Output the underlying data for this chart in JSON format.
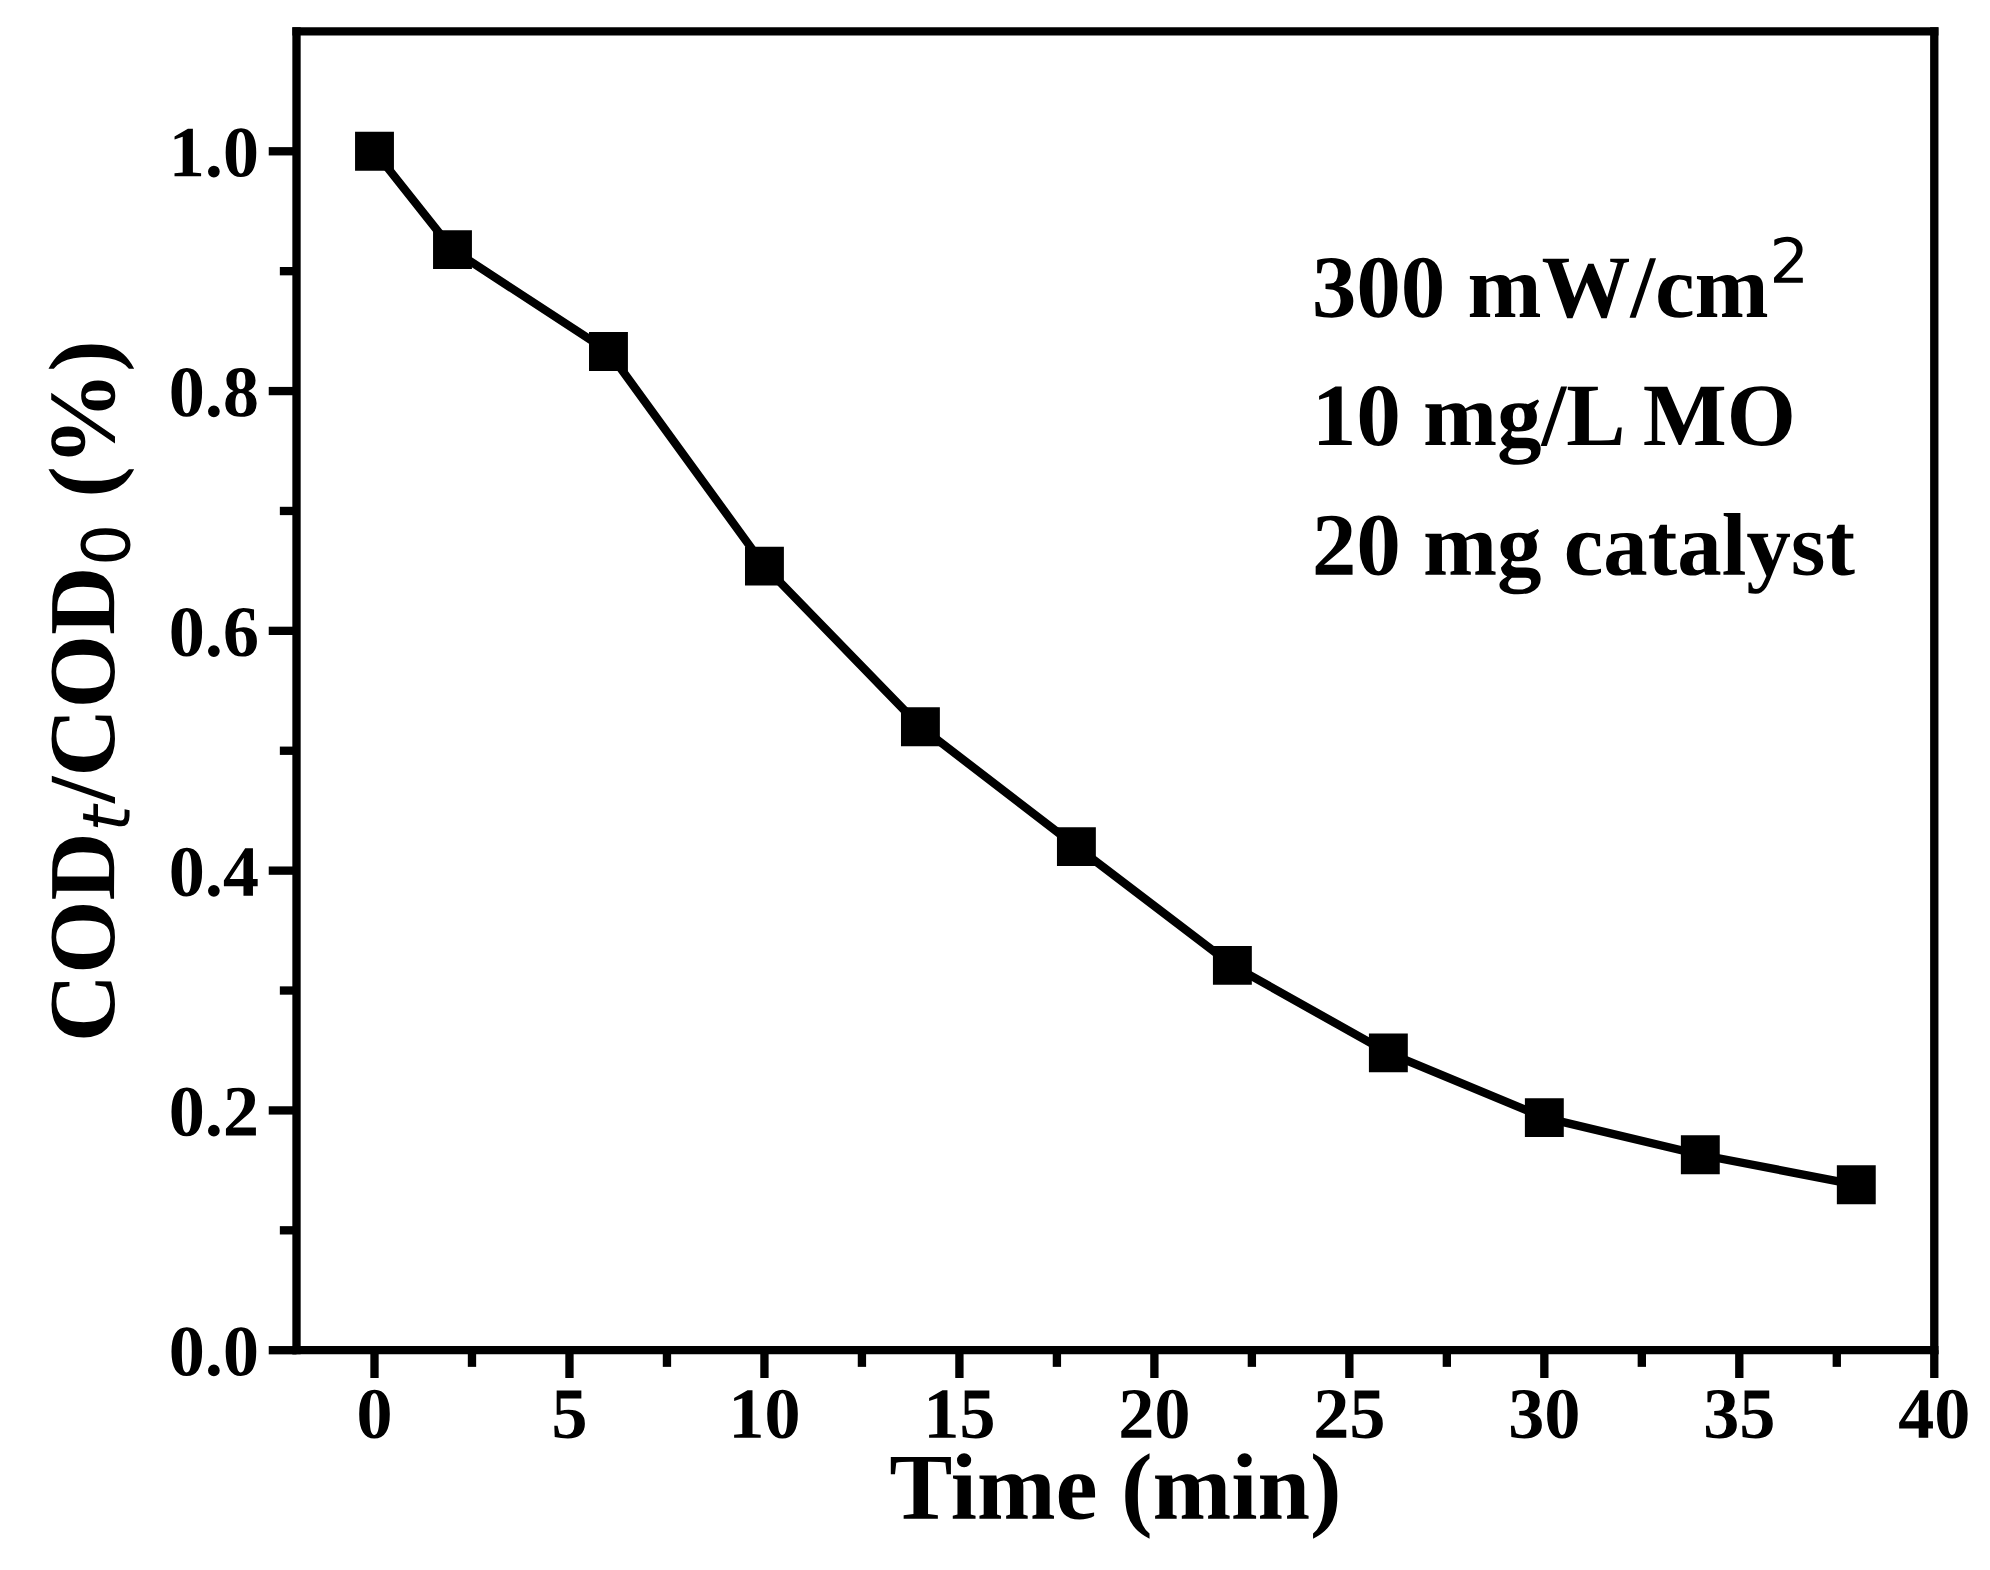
{
  "chart_data": {
    "type": "line",
    "xlabel": "Time (min)",
    "ylabel": "COD$_{t}$/COD$_{0}$ (%)",
    "x": [
      0,
      2,
      6,
      10,
      14,
      18,
      22,
      26,
      30,
      34,
      38
    ],
    "series": [
      {
        "color": "#000000",
        "values": [
          1.0,
          0.918,
          0.833,
          0.654,
          0.52,
          0.42,
          0.321,
          0.248,
          0.194,
          0.163,
          0.138
        ]
      }
    ],
    "marker": "square",
    "line_style": "solid",
    "grid": false,
    "legend": false,
    "xlim": [
      -2,
      40
    ],
    "ylim": [
      0,
      1.1
    ],
    "xticks": [
      0,
      {
        "value": 2.5,
        "label": null
      },
      5,
      {
        "value": 7.5,
        "label": null
      },
      10,
      {
        "value": 12.5,
        "label": null
      },
      15,
      {
        "value": 17.5,
        "label": null
      },
      20,
      {
        "value": 22.5,
        "label": null
      },
      25,
      {
        "value": 27.5,
        "label": null
      },
      30,
      {
        "value": 32.5,
        "label": null
      },
      35,
      {
        "value": 37.5,
        "label": null
      },
      40
    ],
    "yticks": [
      {
        "value": 0,
        "label": "0.0"
      },
      {
        "value": 0.1,
        "label": null
      },
      0.2,
      {
        "value": 0.3,
        "label": null
      },
      0.4,
      {
        "value": 0.5,
        "label": null
      },
      0.6,
      {
        "value": 0.7,
        "label": null
      },
      0.8,
      {
        "value": 0.9,
        "label": null
      },
      {
        "value": 1,
        "label": "1.0"
      }
    ],
    "annotations": [
      "300 mW/cm$^{2}$",
      "10 mg/L MO",
      "20 mg catalyst"
    ]
  }
}
